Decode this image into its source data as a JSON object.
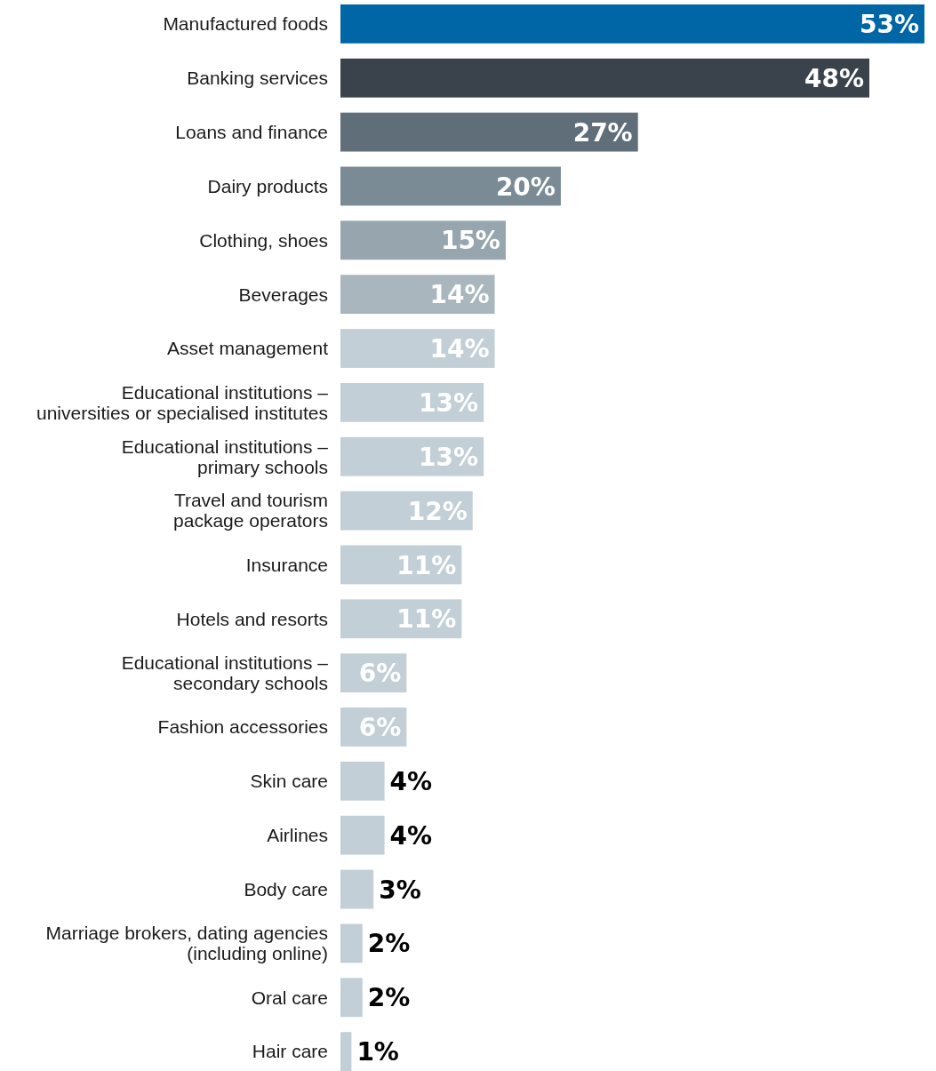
{
  "chart_data": {
    "type": "bar",
    "orientation": "horizontal",
    "categories": [
      "Manufactured foods",
      "Banking services",
      "Loans and finance",
      "Dairy products",
      "Clothing, shoes",
      "Beverages",
      "Asset management",
      "Educational institutions –\nuniversities or specialised institutes",
      "Educational institutions –\nprimary schools",
      "Travel and tourism\npackage operators",
      "Insurance",
      "Hotels and resorts",
      "Educational institutions –\nsecondary schools",
      "Fashion accessories",
      "Skin care",
      "Airlines",
      "Body care",
      "Marriage brokers, dating agencies\n(including online)",
      "Oral care",
      "Hair care"
    ],
    "values": [
      53,
      48,
      27,
      20,
      15,
      14,
      14,
      13,
      13,
      12,
      11,
      11,
      6,
      6,
      4,
      4,
      3,
      2,
      2,
      1
    ],
    "value_labels": [
      "53%",
      "48%",
      "27%",
      "20%",
      "15%",
      "14%",
      "14%",
      "13%",
      "13%",
      "12%",
      "11%",
      "11%",
      "6%",
      "6%",
      "4%",
      "4%",
      "3%",
      "2%",
      "2%",
      "1%"
    ],
    "colors": [
      "#0066a6",
      "#3a434c",
      "#5f6e78",
      "#7a8b95",
      "#97a6ae",
      "#a9b6bd",
      "#c3cfd6",
      "#c3cfd6",
      "#c3cfd6",
      "#c3cfd6",
      "#c3cfd6",
      "#c3cfd6",
      "#c3cfd6",
      "#c3cfd6",
      "#c3cfd6",
      "#c3cfd6",
      "#c3cfd6",
      "#c3cfd6",
      "#c3cfd6",
      "#c3cfd6"
    ]
  }
}
